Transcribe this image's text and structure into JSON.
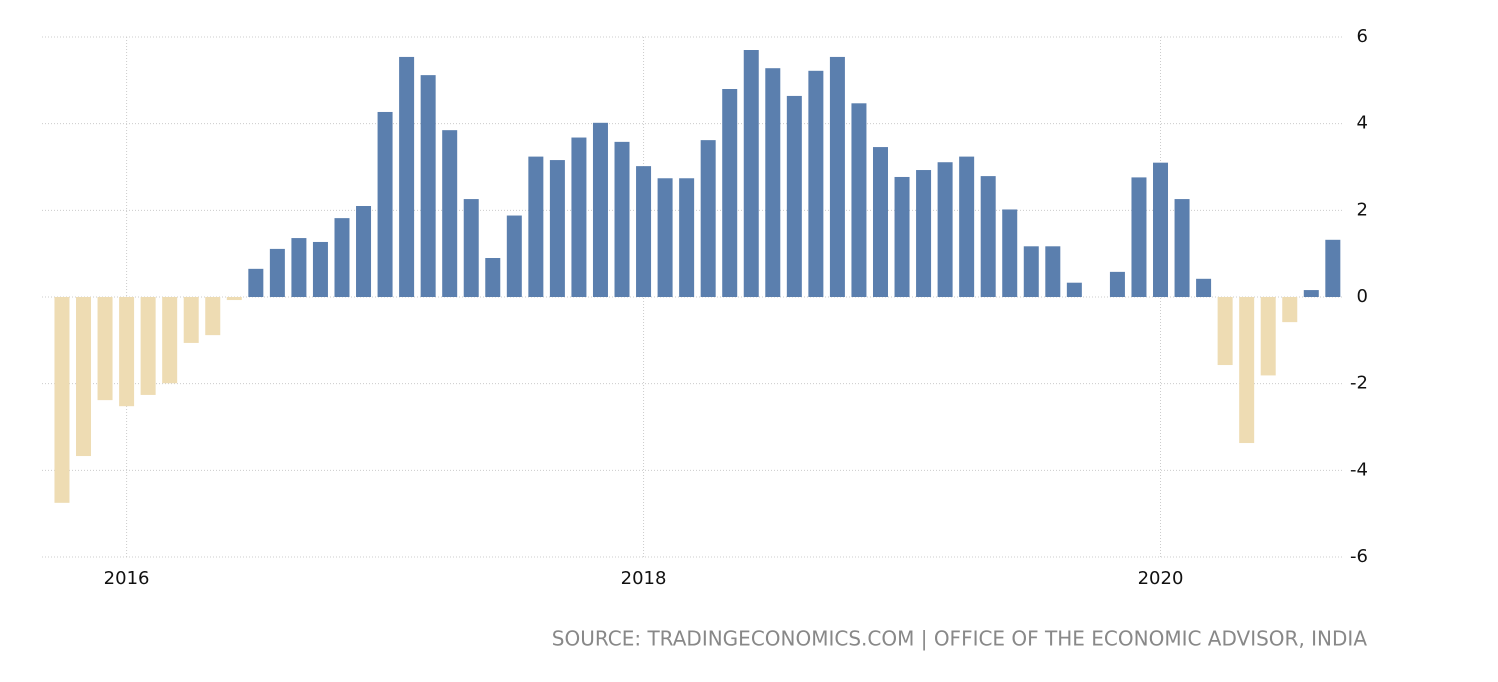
{
  "chart_data": {
    "type": "bar",
    "source": "SOURCE: TRADINGECONOMICS.COM | OFFICE OF THE ECONOMIC ADVISOR, INDIA",
    "categories": [
      null,
      null,
      null,
      "2016",
      null,
      null,
      null,
      null,
      null,
      null,
      null,
      null,
      null,
      null,
      null,
      null,
      null,
      null,
      null,
      null,
      null,
      null,
      null,
      null,
      null,
      null,
      null,
      "2018",
      null,
      null,
      null,
      null,
      null,
      null,
      null,
      null,
      null,
      null,
      null,
      null,
      null,
      null,
      null,
      null,
      null,
      null,
      null,
      null,
      null,
      null,
      null,
      "2020",
      null,
      null,
      null,
      null,
      null,
      null,
      null,
      null
    ],
    "values": [
      -4.75,
      -3.67,
      -2.38,
      -2.52,
      -2.26,
      -1.99,
      -1.06,
      -0.88,
      -0.07,
      0.65,
      1.11,
      1.36,
      1.27,
      1.82,
      2.1,
      4.27,
      5.54,
      5.12,
      3.85,
      2.26,
      0.9,
      1.88,
      3.24,
      3.16,
      3.68,
      4.02,
      3.58,
      3.02,
      2.74,
      2.74,
      3.62,
      4.8,
      5.7,
      5.28,
      4.64,
      5.22,
      5.54,
      4.47,
      3.46,
      2.77,
      2.93,
      3.11,
      3.24,
      2.79,
      2.02,
      1.17,
      1.17,
      0.33,
      0,
      0.58,
      2.76,
      3.1,
      2.26,
      0.42,
      -1.57,
      -3.37,
      -1.81,
      -0.58,
      0.16,
      1.32
    ],
    "color": "#5b7fae",
    "negative_color": "#eedcb3",
    "ylim": [
      -6,
      6
    ],
    "yticks": [
      -6,
      -4,
      -2,
      0,
      2,
      4,
      6
    ],
    "grid": true
  }
}
